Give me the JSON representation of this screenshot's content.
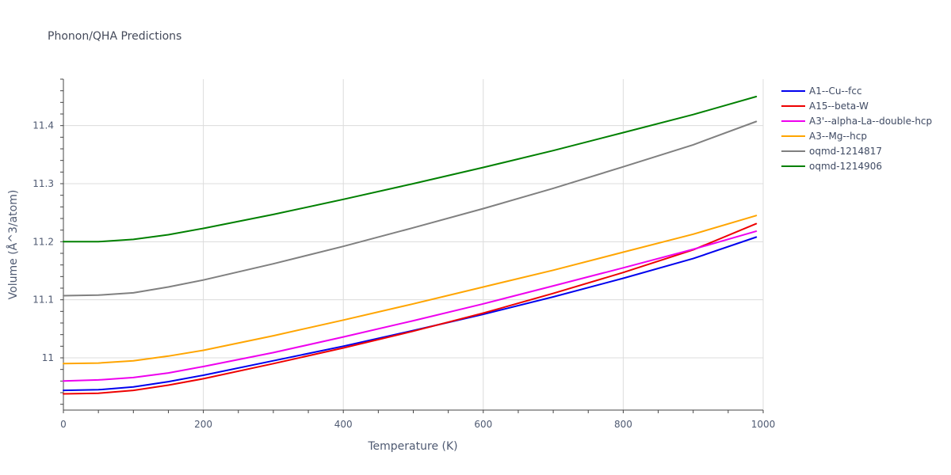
{
  "chart_data": {
    "type": "line",
    "title": "Phonon/QHA Predictions",
    "xlabel": "Temperature (K)",
    "ylabel": "Volume (Å^3/atom)",
    "xlim": [
      0,
      1000
    ],
    "ylim": [
      10.91,
      11.48
    ],
    "x_ticks": [
      0,
      200,
      400,
      600,
      800,
      1000
    ],
    "x_tick_labels": [
      "0",
      "200",
      "400",
      "600",
      "800",
      "1000"
    ],
    "y_ticks": [
      11.0,
      11.1,
      11.2,
      11.3,
      11.4
    ],
    "y_tick_labels": [
      "11",
      "11.1",
      "11.2",
      "11.3",
      "11.4"
    ],
    "grid": true,
    "legend_position": "right",
    "x": [
      0,
      50,
      100,
      150,
      200,
      300,
      400,
      500,
      600,
      700,
      800,
      900,
      990
    ],
    "series": [
      {
        "name": "A1--Cu--fcc",
        "color": "#0000ee",
        "values": [
          10.944,
          10.945,
          10.95,
          10.959,
          10.97,
          10.995,
          11.02,
          11.047,
          11.075,
          11.105,
          11.137,
          11.171,
          11.208
        ]
      },
      {
        "name": "A15--beta-W",
        "color": "#ee0000",
        "values": [
          10.938,
          10.939,
          10.944,
          10.953,
          10.964,
          10.99,
          11.017,
          11.046,
          11.077,
          11.111,
          11.147,
          11.186,
          11.231
        ]
      },
      {
        "name": "A3'--alpha-La--double-hcp",
        "color": "#ee00ee",
        "values": [
          10.96,
          10.962,
          10.966,
          10.974,
          10.985,
          11.009,
          11.036,
          11.064,
          11.093,
          11.124,
          11.155,
          11.187,
          11.218
        ]
      },
      {
        "name": "A3--Mg--hcp",
        "color": "#ffa500",
        "values": [
          10.99,
          10.991,
          10.995,
          11.003,
          11.013,
          11.038,
          11.065,
          11.093,
          11.122,
          11.151,
          11.182,
          11.213,
          11.245
        ]
      },
      {
        "name": "oqmd-1214817",
        "color": "#808080",
        "values": [
          11.107,
          11.108,
          11.112,
          11.122,
          11.134,
          11.162,
          11.192,
          11.224,
          11.257,
          11.292,
          11.329,
          11.367,
          11.407
        ]
      },
      {
        "name": "oqmd-1214906",
        "color": "#008000",
        "values": [
          11.2,
          11.2,
          11.204,
          11.212,
          11.223,
          11.247,
          11.273,
          11.3,
          11.328,
          11.357,
          11.388,
          11.419,
          11.45
        ]
      }
    ]
  }
}
